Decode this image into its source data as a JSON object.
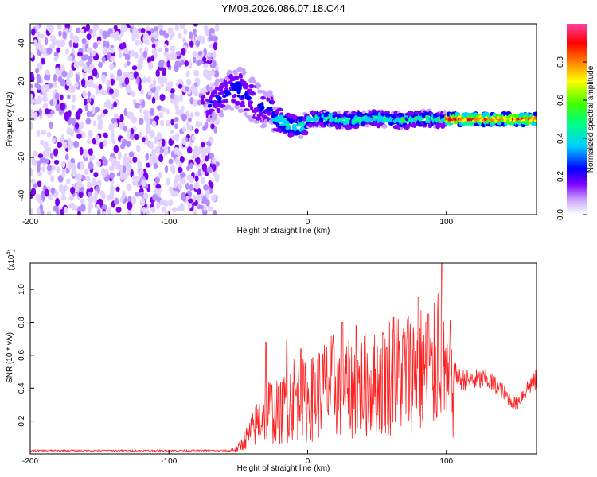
{
  "title": "YM08.2026.086.07.18.C44",
  "chart_data": [
    {
      "type": "heatmap",
      "xlabel": "Height of straight line (km)",
      "ylabel": "Frequency (Hz)",
      "xlim": [
        -200,
        165
      ],
      "ylim": [
        -50,
        50
      ],
      "xticks": [
        -200,
        -100,
        0,
        100
      ],
      "xticklabels": [
        "-200",
        "-100",
        "0",
        "100"
      ],
      "yticks": [
        -40,
        -20,
        0,
        20,
        40
      ],
      "yticklabels": [
        "-40",
        "-20",
        "0",
        "20",
        "40"
      ],
      "colorbar": {
        "label": "Normalized spectral amplitude",
        "range": [
          0,
          1
        ],
        "ticks": [
          0.0,
          0.2,
          0.4,
          0.6,
          0.8
        ],
        "ticklabels": [
          "0.0",
          "0.2",
          "0.4",
          "0.6",
          "0.8"
        ],
        "colors": [
          "#ffffff",
          "#c8a2ff",
          "#8000ff",
          "#0000ff",
          "#00d0ff",
          "#00ff80",
          "#40ff00",
          "#ffff00",
          "#ff8000",
          "#ff0000",
          "#ff40a0"
        ]
      },
      "regions": [
        {
          "x": [
            -200,
            -65
          ],
          "freq": [
            -50,
            50
          ],
          "amplitude": 0.1,
          "pattern": "scattered noise"
        },
        {
          "x": [
            -70,
            -25
          ],
          "freq": [
            -10,
            22
          ],
          "amplitude": 0.35,
          "pattern": "broadband onset"
        },
        {
          "x": [
            -25,
            100
          ],
          "freq": [
            -5,
            5
          ],
          "amplitude": 0.5,
          "pattern": "narrowband near 0 Hz"
        },
        {
          "x": [
            100,
            165
          ],
          "freq": [
            -3,
            3
          ],
          "amplitude": 0.9,
          "pattern": "strong narrowband near 0 Hz"
        }
      ]
    },
    {
      "type": "line",
      "xlabel": "Height of straight line (km)",
      "ylabel": "SNR (10 * v/v)",
      "exponent_label": "(x10",
      "exponent_power": "4",
      "exponent_close": ")",
      "xlim": [
        -200,
        165
      ],
      "ylim": [
        0,
        1.16
      ],
      "xticks": [
        -200,
        -100,
        0,
        100
      ],
      "xticklabels": [
        "-200",
        "-100",
        "0",
        "100"
      ],
      "yticks": [
        0.2,
        0.4,
        0.6,
        0.8,
        1.0
      ],
      "yticklabels": [
        "0.2",
        "0.4",
        "0.6",
        "0.8",
        "1.0"
      ],
      "series": [
        {
          "name": "SNR",
          "color": "#ff2020",
          "envelope": [
            [
              -200,
              0.02
            ],
            [
              -60,
              0.02
            ],
            [
              -50,
              0.05
            ],
            [
              -40,
              0.2
            ],
            [
              -30,
              0.4
            ],
            [
              -20,
              0.35
            ],
            [
              -10,
              0.5
            ],
            [
              0,
              0.45
            ],
            [
              10,
              0.55
            ],
            [
              20,
              0.6
            ],
            [
              30,
              0.55
            ],
            [
              40,
              0.6
            ],
            [
              50,
              0.6
            ],
            [
              60,
              0.7
            ],
            [
              70,
              0.7
            ],
            [
              80,
              0.75
            ],
            [
              90,
              0.65
            ],
            [
              97,
              1.15
            ],
            [
              100,
              0.55
            ],
            [
              110,
              0.45
            ],
            [
              120,
              0.45
            ],
            [
              130,
              0.45
            ],
            [
              140,
              0.38
            ],
            [
              150,
              0.3
            ],
            [
              160,
              0.42
            ],
            [
              165,
              0.45
            ]
          ],
          "peaks": [
            [
              -30,
              0.68
            ],
            [
              -15,
              0.69
            ],
            [
              -5,
              0.64
            ],
            [
              25,
              0.8
            ],
            [
              35,
              0.78
            ],
            [
              55,
              0.73
            ],
            [
              62,
              0.83
            ],
            [
              72,
              0.82
            ],
            [
              80,
              0.95
            ],
            [
              87,
              0.85
            ],
            [
              97,
              1.16
            ],
            [
              103,
              0.81
            ],
            [
              107,
              0.65
            ]
          ]
        }
      ]
    }
  ]
}
